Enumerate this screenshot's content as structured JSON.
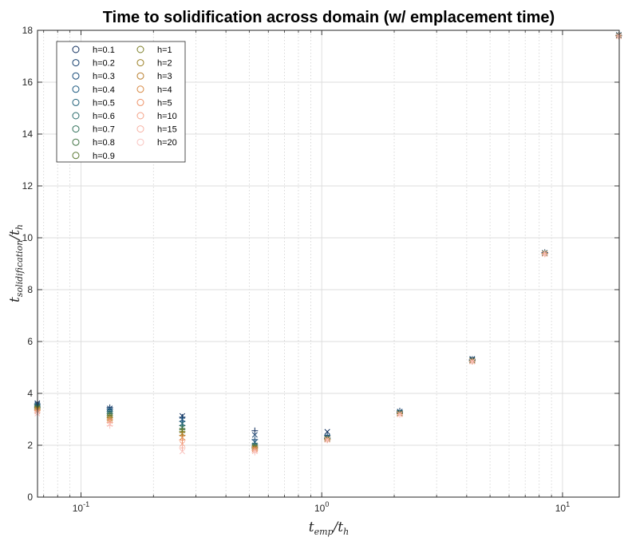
{
  "chart_data": {
    "type": "scatter",
    "title": "Time to solidification across domain (w/ emplacement time)",
    "xlabel": "temp/th",
    "ylabel": "tsolidification/th",
    "xscale": "log",
    "xlim": [
      0.066,
      17.2
    ],
    "ylim": [
      0,
      18
    ],
    "x_ticks": [
      0.1,
      1,
      10
    ],
    "x_tick_labels": [
      "10^-1",
      "10^0",
      "10^1"
    ],
    "y_ticks": [
      0,
      2,
      4,
      6,
      8,
      10,
      12,
      14,
      16,
      18
    ],
    "grid": true,
    "minor_grid": "x",
    "legend_position": "top-left",
    "legend_columns": 2,
    "series": [
      {
        "name": "h=0.1",
        "color": "#0d2c5b",
        "x": [
          0.0659,
          0.1318,
          0.2636,
          0.5273,
          1.0545,
          2.1091,
          4.2182,
          8.4364,
          17.127
        ],
        "y": [
          3.62,
          3.45,
          3.13,
          2.56,
          2.52,
          3.32,
          5.33,
          9.43,
          17.82
        ]
      },
      {
        "name": "h=0.2",
        "color": "#123c6b",
        "x": [
          0.0659,
          0.1318,
          0.2636,
          0.5273,
          1.0545,
          2.1091,
          4.2182,
          8.4364,
          17.127
        ],
        "y": [
          3.6,
          3.42,
          3.08,
          2.4,
          2.38,
          3.3,
          5.31,
          9.42,
          17.81
        ]
      },
      {
        "name": "h=0.3",
        "color": "#174a78",
        "x": [
          0.0659,
          0.1318,
          0.2636,
          0.5273,
          1.0545,
          2.1091,
          4.2182,
          8.4364,
          17.127
        ],
        "y": [
          3.57,
          3.38,
          3.0,
          2.22,
          2.33,
          3.28,
          5.3,
          9.42,
          17.81
        ]
      },
      {
        "name": "h=0.4",
        "color": "#1d5a80",
        "x": [
          0.0659,
          0.1318,
          0.2636,
          0.5273,
          1.0545,
          2.1091,
          4.2182,
          8.4364,
          17.127
        ],
        "y": [
          3.55,
          3.34,
          2.92,
          2.12,
          2.3,
          3.27,
          5.29,
          9.41,
          17.8
        ]
      },
      {
        "name": "h=0.5",
        "color": "#22627a",
        "x": [
          0.0659,
          0.1318,
          0.2636,
          0.5273,
          1.0545,
          2.1091,
          4.2182,
          8.4364,
          17.127
        ],
        "y": [
          3.52,
          3.3,
          2.84,
          2.05,
          2.28,
          3.26,
          5.28,
          9.41,
          17.8
        ]
      },
      {
        "name": "h=0.6",
        "color": "#286a6a",
        "x": [
          0.0659,
          0.1318,
          0.2636,
          0.5273,
          1.0545,
          2.1091,
          4.2182,
          8.4364,
          17.127
        ],
        "y": [
          3.5,
          3.26,
          2.76,
          2.0,
          2.27,
          3.25,
          5.27,
          9.41,
          17.8
        ]
      },
      {
        "name": "h=0.7",
        "color": "#30705a",
        "x": [
          0.0659,
          0.1318,
          0.2636,
          0.5273,
          1.0545,
          2.1091,
          4.2182,
          8.4364,
          17.127
        ],
        "y": [
          3.48,
          3.22,
          2.68,
          1.97,
          2.26,
          3.24,
          5.27,
          9.4,
          17.79
        ]
      },
      {
        "name": "h=0.8",
        "color": "#437446",
        "x": [
          0.0659,
          0.1318,
          0.2636,
          0.5273,
          1.0545,
          2.1091,
          4.2182,
          8.4364,
          17.127
        ],
        "y": [
          3.46,
          3.18,
          2.62,
          1.95,
          2.25,
          3.23,
          5.26,
          9.4,
          17.79
        ]
      },
      {
        "name": "h=0.9",
        "color": "#5c7a35",
        "x": [
          0.0659,
          0.1318,
          0.2636,
          0.5273,
          1.0545,
          2.1091,
          4.2182,
          8.4364,
          17.127
        ],
        "y": [
          3.44,
          3.14,
          2.57,
          1.93,
          2.24,
          3.22,
          5.26,
          9.4,
          17.79
        ]
      },
      {
        "name": "h=1",
        "color": "#7a7d25",
        "x": [
          0.0659,
          0.1318,
          0.2636,
          0.5273,
          1.0545,
          2.1091,
          4.2182,
          8.4364,
          17.127
        ],
        "y": [
          3.42,
          3.1,
          2.52,
          1.91,
          2.23,
          3.22,
          5.25,
          9.39,
          17.79
        ]
      },
      {
        "name": "h=2",
        "color": "#9a7e22",
        "x": [
          0.0659,
          0.1318,
          0.2636,
          0.5273,
          1.0545,
          2.1091,
          4.2182,
          8.4364,
          17.127
        ],
        "y": [
          3.4,
          3.06,
          2.45,
          1.89,
          2.23,
          3.21,
          5.25,
          9.39,
          17.78
        ]
      },
      {
        "name": "h=3",
        "color": "#b97f2e",
        "x": [
          0.0659,
          0.1318,
          0.2636,
          0.5273,
          1.0545,
          2.1091,
          4.2182,
          8.4364,
          17.127
        ],
        "y": [
          3.38,
          3.02,
          2.38,
          1.87,
          2.22,
          3.21,
          5.24,
          9.39,
          17.78
        ]
      },
      {
        "name": "h=4",
        "color": "#d88a45",
        "x": [
          0.0659,
          0.1318,
          0.2636,
          0.5273,
          1.0545,
          2.1091,
          4.2182,
          8.4364,
          17.127
        ],
        "y": [
          3.36,
          2.98,
          2.3,
          1.85,
          2.22,
          3.2,
          5.24,
          9.39,
          17.78
        ]
      },
      {
        "name": "h=5",
        "color": "#ee9268",
        "x": [
          0.0659,
          0.1318,
          0.2636,
          0.5273,
          1.0545,
          2.1091,
          4.2182,
          8.4364,
          17.127
        ],
        "y": [
          3.34,
          2.94,
          2.2,
          1.84,
          2.21,
          3.2,
          5.24,
          9.38,
          17.78
        ]
      },
      {
        "name": "h=10",
        "color": "#f4a287",
        "x": [
          0.0659,
          0.1318,
          0.2636,
          0.5273,
          1.0545,
          2.1091,
          4.2182,
          8.4364,
          17.127
        ],
        "y": [
          3.3,
          2.88,
          2.05,
          1.8,
          2.21,
          3.19,
          5.23,
          9.38,
          17.77
        ]
      },
      {
        "name": "h=15",
        "color": "#f7b2a4",
        "x": [
          0.0659,
          0.1318,
          0.2636,
          0.5273,
          1.0545,
          2.1091,
          4.2182,
          8.4364,
          17.127
        ],
        "y": [
          3.26,
          2.82,
          1.9,
          1.77,
          2.2,
          3.19,
          5.23,
          9.38,
          17.77
        ]
      },
      {
        "name": "h=20",
        "color": "#f9c4c0",
        "x": [
          0.0659,
          0.1318,
          0.2636,
          0.5273,
          1.0545,
          2.1091,
          4.2182,
          8.4364,
          17.127
        ],
        "y": [
          3.22,
          2.76,
          1.76,
          1.73,
          2.2,
          3.18,
          5.22,
          9.37,
          17.77
        ]
      }
    ]
  }
}
